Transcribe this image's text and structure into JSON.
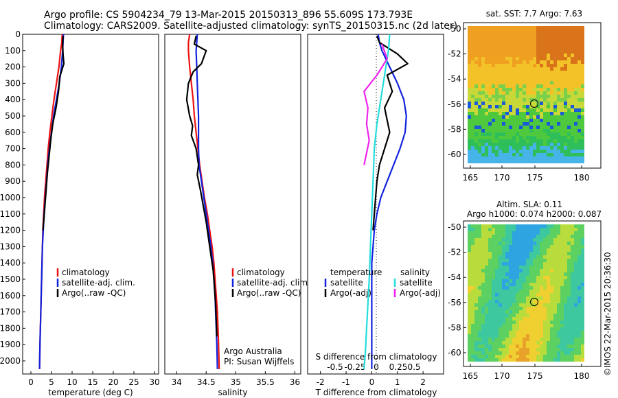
{
  "header": {
    "line1": "Argo profile: CS 5904234_79 13-Mar-2015 20150313_896 55.609S 173.793E",
    "line2": "Climatology: CARS2009. Satellite-adjusted climatology: synTS_20150315.nc (2d later)"
  },
  "colors": {
    "climatology": "#ee1111",
    "satellite": "#1122dd",
    "argo": "#000000",
    "sat_salinity": "#22dddd",
    "argo_salinity": "#ee22ee"
  },
  "chart_data": [
    {
      "type": "line",
      "name": "temperature-profile",
      "xlabel": "temperature (deg C)",
      "ylabel": "depth",
      "xlim": [
        -2,
        31
      ],
      "ylim": [
        2080,
        0
      ],
      "xticks": [
        0,
        5,
        10,
        15,
        20,
        25,
        30
      ],
      "yticks": [
        0,
        100,
        200,
        300,
        400,
        500,
        600,
        700,
        800,
        900,
        1000,
        1100,
        1200,
        1300,
        1400,
        1500,
        1600,
        1700,
        1800,
        1900,
        2000
      ],
      "legend": [
        "climatology",
        "satellite-adj. clim.",
        "Argo(..raw -QC)"
      ],
      "legend_placement": "lower-center",
      "series": [
        {
          "name": "climatology",
          "color": "#ee1111",
          "x": [
            7.6,
            7.5,
            7.2,
            6.8,
            6.2,
            5.6,
            5.1,
            4.6,
            4.2,
            3.9,
            3.6,
            3.3,
            3.1,
            2.9,
            2.8,
            2.7,
            2.6,
            2.5,
            2.4,
            2.3,
            2.2,
            2.1
          ],
          "depth": [
            0,
            50,
            100,
            200,
            300,
            400,
            500,
            600,
            700,
            800,
            900,
            1000,
            1100,
            1200,
            1300,
            1400,
            1500,
            1600,
            1700,
            1800,
            1900,
            2050
          ]
        },
        {
          "name": "satellite-adj. clim.",
          "color": "#1122dd",
          "x": [
            7.9,
            7.8,
            7.7,
            7.4,
            6.9,
            6.2,
            5.5,
            5.0,
            4.5,
            4.1,
            3.8,
            3.5,
            3.2,
            3.0,
            2.8,
            2.7,
            2.6,
            2.5,
            2.4,
            2.3,
            2.2,
            2.1
          ],
          "depth": [
            0,
            50,
            100,
            200,
            300,
            400,
            500,
            600,
            700,
            800,
            900,
            1000,
            1100,
            1200,
            1300,
            1400,
            1500,
            1600,
            1700,
            1800,
            1900,
            2050
          ]
        },
        {
          "name": "Argo(..raw -QC)",
          "color": "#000000",
          "x": [
            7.8,
            7.7,
            7.8,
            8.0,
            7.0,
            6.7,
            6.1,
            5.3,
            4.8,
            4.4,
            4.0,
            3.7,
            3.4,
            3.1,
            2.9
          ],
          "depth": [
            10,
            60,
            120,
            180,
            260,
            350,
            450,
            550,
            650,
            750,
            850,
            950,
            1050,
            1150,
            1200
          ]
        }
      ]
    },
    {
      "type": "line",
      "name": "salinity-profile",
      "xlabel": "salinity",
      "ylim": [
        2080,
        0
      ],
      "xlim": [
        33.8,
        36.1
      ],
      "xticks": [
        34,
        34.5,
        35,
        35.5,
        36
      ],
      "legend": [
        "climatology",
        "satellite-adj. clim.",
        "Argo(..raw -QC)"
      ],
      "legend_placement": "lower-right",
      "annotation": [
        "Argo Australia",
        "PI: Susan Wijffels"
      ],
      "series": [
        {
          "name": "climatology",
          "color": "#ee1111",
          "x": [
            34.22,
            34.2,
            34.2,
            34.22,
            34.25,
            34.28,
            34.3,
            34.33,
            34.36,
            34.39,
            34.43,
            34.47,
            34.52,
            34.56,
            34.6,
            34.63,
            34.65,
            34.67,
            34.69,
            34.7,
            34.71,
            34.72
          ],
          "depth": [
            0,
            50,
            100,
            200,
            300,
            400,
            500,
            600,
            700,
            800,
            900,
            1000,
            1100,
            1200,
            1300,
            1400,
            1500,
            1600,
            1700,
            1800,
            1900,
            2050
          ]
        },
        {
          "name": "satellite-adj. clim.",
          "color": "#1122dd",
          "x": [
            34.35,
            34.34,
            34.33,
            34.34,
            34.35,
            34.36,
            34.37,
            34.37,
            34.37,
            34.38,
            34.42,
            34.46,
            34.5,
            34.54,
            34.58,
            34.61,
            34.63,
            34.65,
            34.66,
            34.67,
            34.68,
            34.69
          ],
          "depth": [
            0,
            50,
            100,
            200,
            300,
            400,
            500,
            600,
            700,
            800,
            900,
            1000,
            1100,
            1200,
            1300,
            1400,
            1500,
            1600,
            1700,
            1800,
            1900,
            2050
          ]
        },
        {
          "name": "Argo(..raw -QC)",
          "color": "#000000",
          "x": [
            34.33,
            34.3,
            34.5,
            34.42,
            34.28,
            34.2,
            34.17,
            34.22,
            34.27,
            34.25,
            34.33,
            34.37,
            34.35,
            34.4,
            34.45,
            34.5,
            34.54,
            34.58,
            34.62,
            34.64,
            34.66,
            34.67,
            34.68
          ],
          "depth": [
            10,
            60,
            100,
            180,
            230,
            300,
            400,
            500,
            560,
            620,
            700,
            800,
            860,
            950,
            1050,
            1150,
            1250,
            1350,
            1450,
            1550,
            1650,
            1750,
            1850
          ]
        }
      ]
    },
    {
      "type": "line",
      "name": "difference-profile",
      "xlabel": "T difference from climatology",
      "top_xlabel": "S difference from climatology",
      "ylim": [
        2080,
        0
      ],
      "xlim": [
        -2.5,
        2.8
      ],
      "xticks": [
        -2,
        -1,
        0,
        1,
        2
      ],
      "top_xticks": [
        "-0.5",
        "-0.25",
        "0",
        "0.25",
        "0.5"
      ],
      "legend_temperature_title": "temperature",
      "legend_salinity_title": "salinity",
      "legend_temperature": [
        "satellite",
        "Argo(-adj)"
      ],
      "legend_salinity": [
        "satellite",
        "Argo(-adj)"
      ],
      "series": [
        {
          "name": "temperature satellite",
          "color": "#1122dd",
          "x": [
            0.25,
            0.3,
            0.4,
            0.7,
            1.0,
            1.25,
            1.35,
            1.3,
            1.1,
            0.85,
            0.6,
            0.35,
            0.2,
            0.1,
            0.05,
            0,
            0,
            0,
            0,
            0
          ],
          "depth": [
            0,
            50,
            100,
            200,
            300,
            400,
            500,
            600,
            700,
            800,
            900,
            1000,
            1100,
            1200,
            1300,
            1400,
            1500,
            1600,
            1800,
            2050
          ]
        },
        {
          "name": "temperature Argo(-adj)",
          "color": "#000000",
          "x": [
            0.2,
            0.3,
            1.0,
            1.4,
            0.6,
            0.8,
            0.5,
            0.7,
            0.5,
            0.3,
            0.2,
            0.15,
            0.1,
            0.05
          ],
          "depth": [
            10,
            50,
            120,
            180,
            250,
            350,
            450,
            600,
            700,
            800,
            900,
            1000,
            1100,
            1200
          ]
        },
        {
          "name": "salinity satellite",
          "color": "#22dddd",
          "x": [
            0.7,
            0.65,
            0.5,
            0.35,
            0.2,
            0.1,
            0.05,
            0,
            -0.05,
            -0.1,
            -0.15,
            -0.2,
            -0.25,
            -0.3
          ],
          "depth": [
            0,
            100,
            250,
            400,
            550,
            700,
            900,
            1100,
            1300,
            1500,
            1650,
            1800,
            1950,
            2050
          ]
        },
        {
          "name": "salinity Argo(-adj)",
          "color": "#ee22ee",
          "x": [
            0.4,
            0.6,
            0.2,
            -0.3,
            -0.15,
            -0.2,
            -0.1,
            -0.3
          ],
          "depth": [
            60,
            150,
            250,
            350,
            450,
            550,
            650,
            800
          ]
        }
      ]
    }
  ],
  "maps": {
    "sst": {
      "title": "sat. SST: 7.7 Argo: 7.63",
      "xticks": [
        "165",
        "170",
        "175",
        "180"
      ],
      "yticks": [
        "-50",
        "-52",
        "-54",
        "-56",
        "-58",
        "-60"
      ]
    },
    "sla": {
      "title1": "Altim. SLA: 0.11",
      "title2": "Argo h1000: 0.074 h2000: 0.087",
      "xticks": [
        "165",
        "170",
        "175",
        "180"
      ],
      "yticks": [
        "-50",
        "-52",
        "-54",
        "-56",
        "-58",
        "-60"
      ]
    }
  },
  "credit": "©IMOS 22-Mar-2015 20:36:30"
}
